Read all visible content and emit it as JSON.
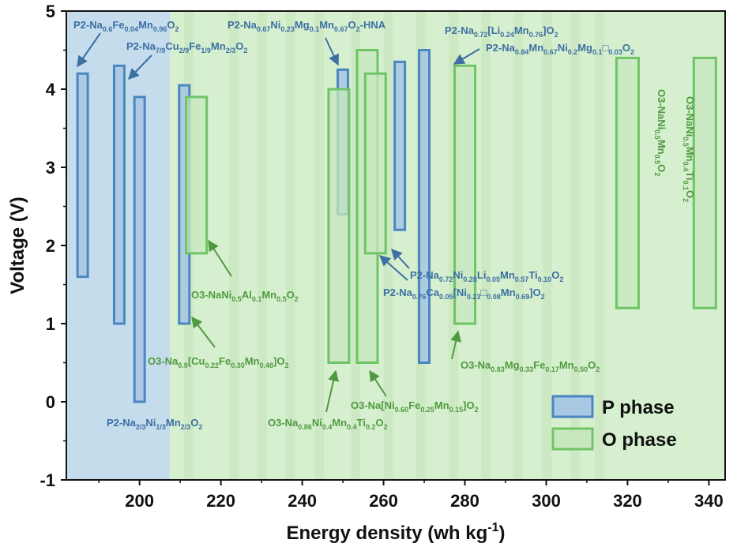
{
  "chart_data": {
    "type": "range-bar",
    "xlabel": "Energy density (wh kg",
    "xlabel_sup": "-1",
    "xlabel_close": ")",
    "ylabel": "Voltage (V)",
    "xlim": [
      182,
      344
    ],
    "ylim": [
      -1,
      5
    ],
    "x_ticks": [
      200,
      220,
      240,
      260,
      280,
      300,
      320,
      340
    ],
    "y_ticks": [
      -1,
      0,
      1,
      2,
      3,
      4,
      5
    ],
    "x_tick_labels": [
      "200",
      "220",
      "240",
      "260",
      "280",
      "300",
      "320",
      "340"
    ],
    "y_tick_labels": [
      "-1",
      "0",
      "1",
      "2",
      "3",
      "4",
      "5"
    ],
    "legend": [
      {
        "name": "P phase",
        "color": "#4a87c0",
        "fill": "#a9c8e3"
      },
      {
        "name": "O phase",
        "color": "#6fc465",
        "fill": "#c7e8bf"
      }
    ],
    "legend_position": "bottom-right",
    "background_regions": [
      {
        "phase": "P",
        "x_from": 182,
        "x_to": 207.5,
        "color": "#c5dced"
      },
      {
        "phase": "O",
        "x_from": 207.5,
        "x_to": 344,
        "color": "#d6efcf"
      }
    ],
    "series": [
      {
        "name": "P phase",
        "bars": [
          {
            "x": 186,
            "y_low": 1.6,
            "y_high": 4.2
          },
          {
            "x": 195,
            "y_low": 1.0,
            "y_high": 4.3
          },
          {
            "x": 200,
            "y_low": 0.0,
            "y_high": 3.9
          },
          {
            "x": 211,
            "y_low": 1.0,
            "y_high": 4.05
          },
          {
            "x": 250,
            "y_low": 2.4,
            "y_high": 4.25
          },
          {
            "x": 264,
            "y_low": 2.2,
            "y_high": 4.35
          },
          {
            "x": 270,
            "y_low": 0.5,
            "y_high": 4.5
          }
        ]
      },
      {
        "name": "O phase",
        "bars": [
          {
            "x": 214,
            "y_low": 1.9,
            "y_high": 3.9
          },
          {
            "x": 249,
            "y_low": 0.5,
            "y_high": 4.0
          },
          {
            "x": 256,
            "y_low": 0.5,
            "y_high": 4.5
          },
          {
            "x": 258,
            "y_low": 1.9,
            "y_high": 4.2
          },
          {
            "x": 280,
            "y_low": 1.0,
            "y_high": 4.3
          },
          {
            "x": 320,
            "y_low": 1.2,
            "y_high": 4.4
          },
          {
            "x": 339,
            "y_low": 1.2,
            "y_high": 4.4
          }
        ]
      }
    ],
    "annotations": [
      {
        "color": "blue",
        "text": "P2-Na<tspan dy='4' font-size='9'>0.6</tspan><tspan dy='-4'>Fe</tspan><tspan dy='4' font-size='9'>0.04</tspan><tspan dy='-4'>Mn</tspan><tspan dy='4' font-size='9'>0.96</tspan><tspan dy='-4'>O</tspan><tspan dy='4' font-size='9'>2</tspan>"
      },
      {
        "color": "blue",
        "text": "P2-Na<tspan dy='4' font-size='9'>7/9</tspan><tspan dy='-4'>Cu</tspan><tspan dy='4' font-size='9'>2/9</tspan><tspan dy='-4'>Fe</tspan><tspan dy='4' font-size='9'>1/9</tspan><tspan dy='-4'>Mn</tspan><tspan dy='4' font-size='9'>2/3</tspan><tspan dy='-4'>O</tspan><tspan dy='4' font-size='9'>2</tspan>"
      },
      {
        "color": "blue",
        "text": "P2-Na<tspan dy='4' font-size='9'>0.67</tspan><tspan dy='-4'>Ni</tspan><tspan dy='4' font-size='9'>0.23</tspan><tspan dy='-4'>Mg</tspan><tspan dy='4' font-size='9'>0.1</tspan><tspan dy='-4'>Mn</tspan><tspan dy='4' font-size='9'>0.67</tspan><tspan dy='-4'>O</tspan><tspan dy='4' font-size='9'>2</tspan><tspan dy='-4'>-HNA</tspan>"
      },
      {
        "color": "blue",
        "text": "P2-Na<tspan dy='4' font-size='9'>0.72</tspan><tspan dy='-4'>[Li</tspan><tspan dy='4' font-size='9'>0.24</tspan><tspan dy='-4'>Mn</tspan><tspan dy='4' font-size='9'>0.76</tspan><tspan dy='-4'>]O</tspan><tspan dy='4' font-size='9'>2</tspan>"
      },
      {
        "color": "blue",
        "text": "P2-Na<tspan dy='4' font-size='9'>0.84</tspan><tspan dy='-4'>Mn</tspan><tspan dy='4' font-size='9'>0.67</tspan><tspan dy='-4'>Ni</tspan><tspan dy='4' font-size='9'>0.2</tspan><tspan dy='-4'>Mg</tspan><tspan dy='4' font-size='9'>0.1</tspan><tspan dy='-4'>□</tspan><tspan dy='4' font-size='9'>0.03</tspan><tspan dy='-4'>O</tspan><tspan dy='4' font-size='9'>2</tspan>"
      },
      {
        "color": "blue",
        "text": "P2-Na<tspan dy='4' font-size='9'>0.72</tspan><tspan dy='-4'>Ni</tspan><tspan dy='4' font-size='9'>0.28</tspan><tspan dy='-4'>Li</tspan><tspan dy='4' font-size='9'>0.05</tspan><tspan dy='-4'>Mn</tspan><tspan dy='4' font-size='9'>0.57</tspan><tspan dy='-4'>Ti</tspan><tspan dy='4' font-size='9'>0.10</tspan><tspan dy='-4'>O</tspan><tspan dy='4' font-size='9'>2</tspan>"
      },
      {
        "color": "blue",
        "text": "P2-Na<tspan dy='4' font-size='9'>0.76</tspan><tspan dy='-4'>Ca</tspan><tspan dy='4' font-size='9'>0.05</tspan><tspan dy='-4'>[Ni</tspan><tspan dy='4' font-size='9'>0.23</tspan><tspan dy='-4'>□</tspan><tspan dy='4' font-size='9'>0.08</tspan><tspan dy='-4'>Mn</tspan><tspan dy='4' font-size='9'>0.69</tspan><tspan dy='-4'>]O</tspan><tspan dy='4' font-size='9'>2</tspan>"
      },
      {
        "color": "blue",
        "text": "P2-Na<tspan dy='4' font-size='9'>2/3</tspan><tspan dy='-4'>Ni</tspan><tspan dy='4' font-size='9'>1/3</tspan><tspan dy='-4'>Mn</tspan><tspan dy='4' font-size='9'>2/3</tspan><tspan dy='-4'>O</tspan><tspan dy='4' font-size='9'>2</tspan>"
      },
      {
        "color": "green",
        "text": "O3-NaNi<tspan dy='4' font-size='9'>0.5</tspan><tspan dy='-4'>Al</tspan><tspan dy='4' font-size='9'>0.1</tspan><tspan dy='-4'>Mn</tspan><tspan dy='4' font-size='9'>0.5</tspan><tspan dy='-4'>O</tspan><tspan dy='4' font-size='9'>2</tspan>"
      },
      {
        "color": "green",
        "text": "O3-Na<tspan dy='4' font-size='9'>0.9</tspan><tspan dy='-4'>[Cu</tspan><tspan dy='4' font-size='9'>0.22</tspan><tspan dy='-4'>Fe</tspan><tspan dy='4' font-size='9'>0.30</tspan><tspan dy='-4'>Mn</tspan><tspan dy='4' font-size='9'>0.48</tspan><tspan dy='-4'>]O</tspan><tspan dy='4' font-size='9'>2</tspan>"
      },
      {
        "color": "green",
        "text": "O3-Na<tspan dy='4' font-size='9'>0.83</tspan><tspan dy='-4'>Mg</tspan><tspan dy='4' font-size='9'>0.33</tspan><tspan dy='-4'>Fe</tspan><tspan dy='4' font-size='9'>0.17</tspan><tspan dy='-4'>Mn</tspan><tspan dy='4' font-size='9'>0.50</tspan><tspan dy='-4'>O</tspan><tspan dy='4' font-size='9'>2</tspan>"
      },
      {
        "color": "green",
        "text": "O3-Na[Ni<tspan dy='4' font-size='9'>0.60</tspan><tspan dy='-4'>Fe</tspan><tspan dy='4' font-size='9'>0.25</tspan><tspan dy='-4'>Mn</tspan><tspan dy='4' font-size='9'>0.15</tspan><tspan dy='-4'>]O</tspan><tspan dy='4' font-size='9'>2</tspan>"
      },
      {
        "color": "green",
        "text": "O3-Na<tspan dy='4' font-size='9'>0.86</tspan><tspan dy='-4'>Ni</tspan><tspan dy='4' font-size='9'>0.4</tspan><tspan dy='-4'>Mn</tspan><tspan dy='4' font-size='9'>0.4</tspan><tspan dy='-4'>Ti</tspan><tspan dy='4' font-size='9'>0.2</tspan><tspan dy='-4'>O</tspan><tspan dy='4' font-size='9'>2</tspan>"
      },
      {
        "color": "green",
        "text": "O3-NaNi<tspan dy='4' font-size='9'>0.5</tspan><tspan dy='-4'>Mn</tspan><tspan dy='4' font-size='9'>0.5</tspan><tspan dy='-4'>O</tspan><tspan dy='4' font-size='9'>2</tspan>"
      },
      {
        "color": "green",
        "text": "O3-NaNi<tspan dy='4' font-size='9'>0.5</tspan><tspan dy='-4'>Mn</tspan><tspan dy='4' font-size='9'>0.4</tspan><tspan dy='-4'>Ti</tspan><tspan dy='4' font-size='9'>0.1</tspan><tspan dy='-4'>O</tspan><tspan dy='4' font-size='9'>2</tspan>"
      }
    ]
  }
}
